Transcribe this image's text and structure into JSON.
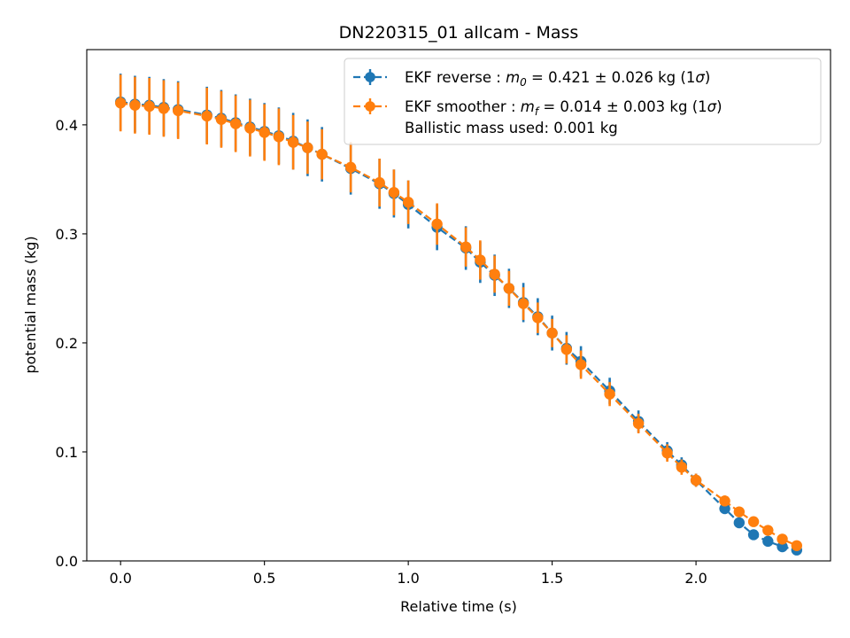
{
  "chart_data": {
    "type": "line",
    "title": "DN220315_01 allcam - Mass",
    "xlabel": "Relative time (s)",
    "ylabel": "potential mass (kg)",
    "xlim": [
      -0.1175,
      2.4675
    ],
    "ylim": [
      0.0,
      0.469
    ],
    "xticks": [
      0.0,
      0.5,
      1.0,
      1.5,
      2.0
    ],
    "xtick_labels": [
      "0.0",
      "0.5",
      "1.0",
      "1.5",
      "2.0"
    ],
    "yticks": [
      0.0,
      0.1,
      0.2,
      0.3,
      0.4
    ],
    "ytick_labels": [
      "0.0",
      "0.1",
      "0.2",
      "0.3",
      "0.4"
    ],
    "grid": false,
    "legend_position": "top-right",
    "series": [
      {
        "name": "EKF reverse : m0 = 0.421 ± 0.026 kg (1σ)",
        "legend": {
          "prefix": "EKF reverse : ",
          "sym": "m",
          "sub": "0",
          "suffix": " =  0.421 ± 0.026 kg (1",
          "greek": "σ",
          "close": ")"
        },
        "color": "#1f77b4",
        "style": "dashed",
        "marker": "circle",
        "points": [
          [
            0.0,
            0.421,
            0.026
          ],
          [
            0.05,
            0.419,
            0.026
          ],
          [
            0.1,
            0.418,
            0.026
          ],
          [
            0.15,
            0.416,
            0.026
          ],
          [
            0.2,
            0.414,
            0.026
          ],
          [
            0.3,
            0.409,
            0.026
          ],
          [
            0.35,
            0.406,
            0.026
          ],
          [
            0.4,
            0.402,
            0.026
          ],
          [
            0.45,
            0.398,
            0.026
          ],
          [
            0.5,
            0.394,
            0.026
          ],
          [
            0.55,
            0.39,
            0.026
          ],
          [
            0.6,
            0.385,
            0.026
          ],
          [
            0.65,
            0.379,
            0.026
          ],
          [
            0.7,
            0.373,
            0.025
          ],
          [
            0.8,
            0.36,
            0.024
          ],
          [
            0.9,
            0.346,
            0.023
          ],
          [
            0.95,
            0.337,
            0.022
          ],
          [
            1.0,
            0.327,
            0.022
          ],
          [
            1.1,
            0.306,
            0.021
          ],
          [
            1.2,
            0.287,
            0.02
          ],
          [
            1.25,
            0.274,
            0.019
          ],
          [
            1.3,
            0.262,
            0.019
          ],
          [
            1.35,
            0.25,
            0.018
          ],
          [
            1.4,
            0.237,
            0.018
          ],
          [
            1.45,
            0.224,
            0.017
          ],
          [
            1.5,
            0.209,
            0.016
          ],
          [
            1.55,
            0.195,
            0.015
          ],
          [
            1.6,
            0.183,
            0.014
          ],
          [
            1.7,
            0.156,
            0.012
          ],
          [
            1.8,
            0.128,
            0.01
          ],
          [
            1.9,
            0.101,
            0.008
          ],
          [
            1.95,
            0.088,
            0.007
          ],
          [
            2.0,
            0.074,
            0.006
          ],
          [
            2.1,
            0.048,
            0.005
          ],
          [
            2.15,
            0.035,
            0.005
          ],
          [
            2.2,
            0.024,
            0.004
          ],
          [
            2.25,
            0.018,
            0.003
          ],
          [
            2.3,
            0.013,
            0.003
          ],
          [
            2.35,
            0.01,
            0.003
          ]
        ]
      },
      {
        "name": "EKF smoother : mf = 0.014 ± 0.003 kg (1σ)",
        "legend": {
          "prefix": "EKF smoother : ",
          "sym": "m",
          "sub": "f",
          "suffix": " =  0.014 ± 0.003 kg (1",
          "greek": "σ",
          "close": ")"
        },
        "legend_extra": " Ballistic mass used: 0.001 kg",
        "color": "#ff7f0e",
        "style": "dashed",
        "marker": "circle",
        "points": [
          [
            0.0,
            0.42,
            0.026
          ],
          [
            0.05,
            0.418,
            0.026
          ],
          [
            0.1,
            0.417,
            0.026
          ],
          [
            0.15,
            0.415,
            0.026
          ],
          [
            0.2,
            0.413,
            0.026
          ],
          [
            0.3,
            0.408,
            0.026
          ],
          [
            0.35,
            0.405,
            0.026
          ],
          [
            0.4,
            0.401,
            0.026
          ],
          [
            0.45,
            0.397,
            0.026
          ],
          [
            0.5,
            0.393,
            0.026
          ],
          [
            0.55,
            0.389,
            0.026
          ],
          [
            0.6,
            0.384,
            0.025
          ],
          [
            0.65,
            0.379,
            0.024
          ],
          [
            0.7,
            0.373,
            0.023
          ],
          [
            0.8,
            0.361,
            0.023
          ],
          [
            0.9,
            0.347,
            0.022
          ],
          [
            0.95,
            0.338,
            0.021
          ],
          [
            1.0,
            0.329,
            0.02
          ],
          [
            1.1,
            0.309,
            0.019
          ],
          [
            1.2,
            0.288,
            0.018
          ],
          [
            1.25,
            0.276,
            0.018
          ],
          [
            1.3,
            0.263,
            0.017
          ],
          [
            1.35,
            0.25,
            0.016
          ],
          [
            1.4,
            0.236,
            0.015
          ],
          [
            1.45,
            0.223,
            0.014
          ],
          [
            1.5,
            0.209,
            0.013
          ],
          [
            1.55,
            0.194,
            0.013
          ],
          [
            1.6,
            0.18,
            0.013
          ],
          [
            1.7,
            0.153,
            0.011
          ],
          [
            1.8,
            0.126,
            0.009
          ],
          [
            1.9,
            0.099,
            0.008
          ],
          [
            1.95,
            0.086,
            0.007
          ],
          [
            2.0,
            0.074,
            0.006
          ],
          [
            2.1,
            0.055,
            0.005
          ],
          [
            2.15,
            0.045,
            0.004
          ],
          [
            2.2,
            0.036,
            0.004
          ],
          [
            2.25,
            0.028,
            0.003
          ],
          [
            2.3,
            0.02,
            0.003
          ],
          [
            2.35,
            0.014,
            0.003
          ]
        ]
      }
    ]
  }
}
